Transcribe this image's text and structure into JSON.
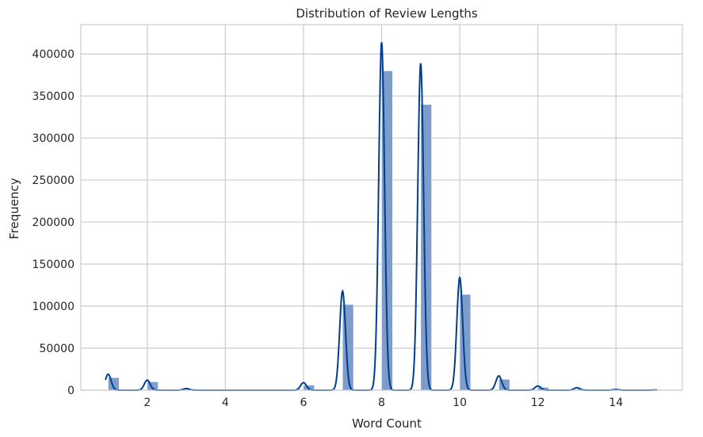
{
  "chart_data": {
    "type": "bar",
    "subtype": "histogram-with-kde",
    "title": "Distribution of Review Lengths",
    "xlabel": "Word Count",
    "ylabel": "Frequency",
    "xlim": [
      0.3,
      15.7
    ],
    "ylim": [
      0,
      435000
    ],
    "xticks": [
      2,
      4,
      6,
      8,
      10,
      12,
      14
    ],
    "yticks": [
      0,
      50000,
      100000,
      150000,
      200000,
      250000,
      300000,
      350000,
      400000
    ],
    "grid": true,
    "bin_width": 0.28,
    "bins": [
      {
        "x": 1,
        "count": 15000
      },
      {
        "x": 2,
        "count": 10000
      },
      {
        "x": 3,
        "count": 1500
      },
      {
        "x": 6,
        "count": 6000
      },
      {
        "x": 7,
        "count": 102000
      },
      {
        "x": 8,
        "count": 380000
      },
      {
        "x": 9,
        "count": 340000
      },
      {
        "x": 10,
        "count": 114000
      },
      {
        "x": 11,
        "count": 13000
      },
      {
        "x": 12,
        "count": 3500
      },
      {
        "x": 13,
        "count": 1500
      },
      {
        "x": 14,
        "count": 800
      },
      {
        "x": 15,
        "count": 300
      }
    ],
    "kde": {
      "peaks": [
        {
          "x": 1,
          "height": 19000
        },
        {
          "x": 2,
          "height": 12000
        },
        {
          "x": 3,
          "height": 2000
        },
        {
          "x": 6,
          "height": 9000
        },
        {
          "x": 7,
          "height": 118000
        },
        {
          "x": 8,
          "height": 414000
        },
        {
          "x": 9,
          "height": 389000
        },
        {
          "x": 10,
          "height": 134000
        },
        {
          "x": 11,
          "height": 17000
        },
        {
          "x": 12,
          "height": 5000
        },
        {
          "x": 13,
          "height": 3000
        },
        {
          "x": 14,
          "height": 800
        },
        {
          "x": 15,
          "height": 300
        }
      ]
    },
    "colors": {
      "bar_fill": "#7f9dcb",
      "kde_line": "#003f8f",
      "grid": "#cccccc",
      "axes_edge": "#cccccc",
      "text": "#262626"
    }
  }
}
